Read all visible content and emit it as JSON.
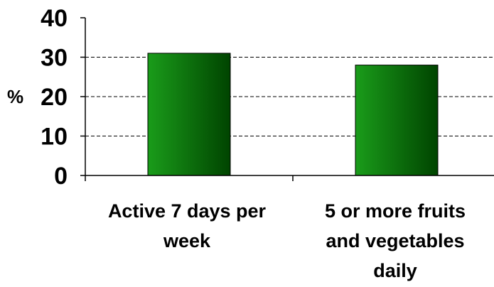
{
  "chart_data": {
    "type": "bar",
    "categories": [
      [
        "Active 7 days per",
        "week"
      ],
      [
        "5 or more fruits",
        "and vegetables",
        "daily"
      ]
    ],
    "values": [
      31,
      28
    ],
    "ylabel": "%",
    "xlabel": "",
    "ylim": [
      0,
      40
    ],
    "yticks": [
      0,
      10,
      20,
      30,
      40
    ],
    "grid": "dashed horizontal at 10, 20, 30",
    "bar_gradient": [
      "#1a9c1a",
      "#004400"
    ],
    "bar_border": "#000000"
  }
}
